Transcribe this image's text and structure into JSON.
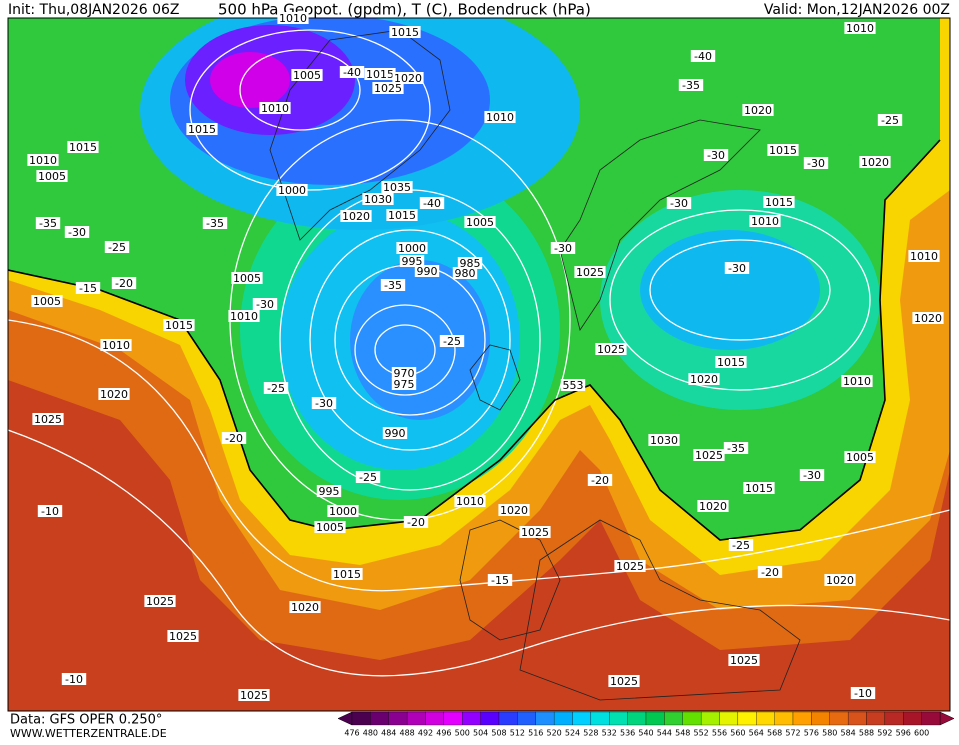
{
  "header": {
    "init": "Init: Thu,08JAN2026 06Z",
    "title": "500 hPa Geopot. (gpdm), T (C), Bodendruck (hPa)",
    "valid": "Valid: Mon,12JAN2026 00Z"
  },
  "footer": {
    "data": "Data: GFS OPER 0.250°",
    "site": "WWW.WETTERZENTRALE.DE"
  },
  "map_labels": [
    "1015",
    "1010",
    "1005",
    "-40",
    "1015",
    "1020",
    "1025",
    "1010",
    "1015",
    "1015",
    "1010",
    "1005",
    "1000",
    "1035",
    "1030",
    "1020",
    "1015",
    "-40",
    "1005",
    "1010",
    "1000",
    "995",
    "990",
    "985",
    "980",
    "-35",
    "-30",
    "-35",
    "-25",
    "1005",
    "1005",
    "-15",
    "-20",
    "-30",
    "1010",
    "1015",
    "1010",
    "1020",
    "-25",
    "-35",
    "-25",
    "970",
    "975",
    "-30",
    "990",
    "-20",
    "1025",
    "-10",
    "995",
    "-25",
    "1000",
    "1005",
    "-20",
    "1010",
    "1020",
    "1025",
    "-15",
    "1015",
    "1025",
    "1020",
    "1025",
    "1025",
    "-20",
    "1025",
    "553",
    "-30",
    "1025",
    "1030",
    "1025",
    "-35",
    "1015",
    "1020",
    "-25",
    "-20",
    "1020",
    "1005",
    "-30",
    "1010",
    "1020",
    "1015",
    "-30",
    "1015",
    "1010",
    "1020",
    "1015",
    "-30",
    "-30",
    "-30",
    "1020",
    "-25",
    "1010",
    "-40",
    "-35",
    "1010",
    "1020",
    "1025",
    "1025",
    "1025",
    "-10",
    "-10"
  ],
  "colorbar": {
    "levels": [
      476,
      480,
      484,
      488,
      492,
      496,
      500,
      504,
      508,
      512,
      516,
      520,
      524,
      528,
      532,
      536,
      540,
      544,
      548,
      552,
      556,
      560,
      564,
      568,
      572,
      576,
      580,
      584,
      588,
      592,
      596,
      600
    ],
    "colors": [
      "#4b0050",
      "#6a0070",
      "#8a0090",
      "#b000b8",
      "#d000e0",
      "#e400ff",
      "#9400ff",
      "#5a00ff",
      "#2a3cff",
      "#2060ff",
      "#1e8fff",
      "#00b0ff",
      "#00cfff",
      "#00e0e0",
      "#00e0b0",
      "#00d47c",
      "#00c850",
      "#30d030",
      "#64e000",
      "#a4f000",
      "#e4f400",
      "#fff000",
      "#ffd800",
      "#ffbc00",
      "#ffa000",
      "#f48400",
      "#e86a10",
      "#d8521c",
      "#c83c20",
      "#b82824",
      "#a81428",
      "#980a3a"
    ]
  }
}
